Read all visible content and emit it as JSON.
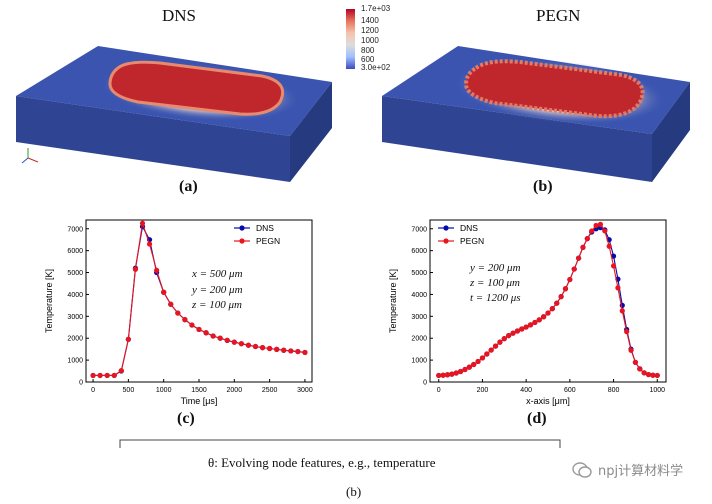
{
  "panels": {
    "a": {
      "title": "DNS",
      "caption": "(a)"
    },
    "b": {
      "title": "PEGN",
      "caption": "(b)"
    },
    "c": {
      "caption": "(c)"
    },
    "d": {
      "caption": "(d)"
    }
  },
  "colorbar": {
    "max_label": "1.7e+03",
    "ticks": [
      "1400",
      "1200",
      "1000",
      "800",
      "600"
    ],
    "min_label": "3.0e+02",
    "colors": [
      "#b40426",
      "#e7745b",
      "#f5c4ac",
      "#dddcdc",
      "#9ebeff",
      "#3b4cc0"
    ]
  },
  "chart_data": [
    {
      "type": "line",
      "title": "",
      "xlabel": "Time [μs]",
      "ylabel": "Temperature [K]",
      "xlim": [
        -100,
        3100
      ],
      "ylim": [
        0,
        7400
      ],
      "xticks": [
        0,
        500,
        1000,
        1500,
        2000,
        2500,
        3000
      ],
      "yticks": [
        0,
        1000,
        2000,
        3000,
        4000,
        5000,
        6000,
        7000
      ],
      "annotations": [
        "x = 500 μm",
        "y = 200 μm",
        "z = 100 μm"
      ],
      "legend": "top-right",
      "series": [
        {
          "name": "DNS",
          "color": "#0a0aa8",
          "x": [
            0,
            100,
            200,
            300,
            400,
            500,
            600,
            700,
            800,
            900,
            1000,
            1100,
            1200,
            1300,
            1400,
            1500,
            1600,
            1700,
            1800,
            1900,
            2000,
            2100,
            2200,
            2300,
            2400,
            2500,
            2600,
            2700,
            2800,
            2900,
            3000
          ],
          "y": [
            300,
            300,
            300,
            300,
            500,
            1950,
            5200,
            7100,
            6500,
            5000,
            4100,
            3550,
            3150,
            2850,
            2600,
            2400,
            2250,
            2100,
            2000,
            1900,
            1820,
            1750,
            1680,
            1620,
            1570,
            1530,
            1490,
            1450,
            1420,
            1390,
            1350
          ]
        },
        {
          "name": "PEGN",
          "color": "#e8141e",
          "x": [
            0,
            100,
            200,
            300,
            400,
            500,
            600,
            700,
            800,
            900,
            1000,
            1100,
            1200,
            1300,
            1400,
            1500,
            1600,
            1700,
            1800,
            1900,
            2000,
            2100,
            2200,
            2300,
            2400,
            2500,
            2600,
            2700,
            2800,
            2900,
            3000
          ],
          "y": [
            300,
            300,
            300,
            300,
            520,
            1950,
            5150,
            7250,
            6300,
            5100,
            4100,
            3550,
            3150,
            2850,
            2600,
            2400,
            2250,
            2100,
            2000,
            1900,
            1820,
            1750,
            1680,
            1620,
            1570,
            1530,
            1490,
            1450,
            1420,
            1390,
            1350
          ]
        }
      ]
    },
    {
      "type": "line",
      "title": "",
      "xlabel": "x-axis [μm]",
      "ylabel": "Temperature [K]",
      "xlim": [
        -40,
        1040
      ],
      "ylim": [
        0,
        7400
      ],
      "xticks": [
        0,
        200,
        400,
        600,
        800,
        1000
      ],
      "yticks": [
        0,
        1000,
        2000,
        3000,
        4000,
        5000,
        6000,
        7000
      ],
      "annotations": [
        "y = 200 μm",
        "z = 100 μm",
        "t = 1200 μs"
      ],
      "legend": "top-left",
      "series": [
        {
          "name": "DNS",
          "color": "#0a0aa8",
          "x": [
            0,
            20,
            40,
            60,
            80,
            100,
            120,
            140,
            160,
            180,
            200,
            220,
            240,
            260,
            280,
            300,
            320,
            340,
            360,
            380,
            400,
            420,
            440,
            460,
            480,
            500,
            520,
            540,
            560,
            580,
            600,
            620,
            640,
            660,
            680,
            700,
            720,
            740,
            760,
            780,
            800,
            820,
            840,
            860,
            880,
            900,
            920,
            940,
            960,
            980,
            1000
          ],
          "y": [
            300,
            310,
            330,
            360,
            410,
            480,
            570,
            680,
            800,
            940,
            1100,
            1280,
            1460,
            1640,
            1820,
            1980,
            2120,
            2230,
            2330,
            2420,
            2510,
            2610,
            2720,
            2840,
            2980,
            3150,
            3350,
            3600,
            3900,
            4260,
            4680,
            5160,
            5660,
            6150,
            6550,
            6850,
            7000,
            7050,
            6950,
            6500,
            5750,
            4700,
            3500,
            2400,
            1500,
            900,
            600,
            420,
            340,
            310,
            300
          ]
        },
        {
          "name": "PEGN",
          "color": "#e8141e",
          "x": [
            0,
            20,
            40,
            60,
            80,
            100,
            120,
            140,
            160,
            180,
            200,
            220,
            240,
            260,
            280,
            300,
            320,
            340,
            360,
            380,
            400,
            420,
            440,
            460,
            480,
            500,
            520,
            540,
            560,
            580,
            600,
            620,
            640,
            660,
            680,
            700,
            720,
            740,
            760,
            780,
            800,
            820,
            840,
            860,
            880,
            900,
            920,
            940,
            960,
            980,
            1000
          ],
          "y": [
            300,
            310,
            330,
            360,
            410,
            480,
            570,
            680,
            800,
            940,
            1100,
            1280,
            1460,
            1640,
            1820,
            1980,
            2120,
            2230,
            2330,
            2420,
            2510,
            2610,
            2720,
            2840,
            2980,
            3150,
            3350,
            3600,
            3900,
            4260,
            4680,
            5160,
            5650,
            6150,
            6550,
            6900,
            7150,
            7200,
            6900,
            6200,
            5300,
            4300,
            3250,
            2300,
            1450,
            900,
            600,
            420,
            340,
            310,
            300
          ]
        }
      ]
    }
  ],
  "bracket": {
    "text": "θ: Evolving node features, e.g., temperature"
  },
  "figure_caption": "(b)",
  "watermark": {
    "text": "npj计算材料学"
  }
}
